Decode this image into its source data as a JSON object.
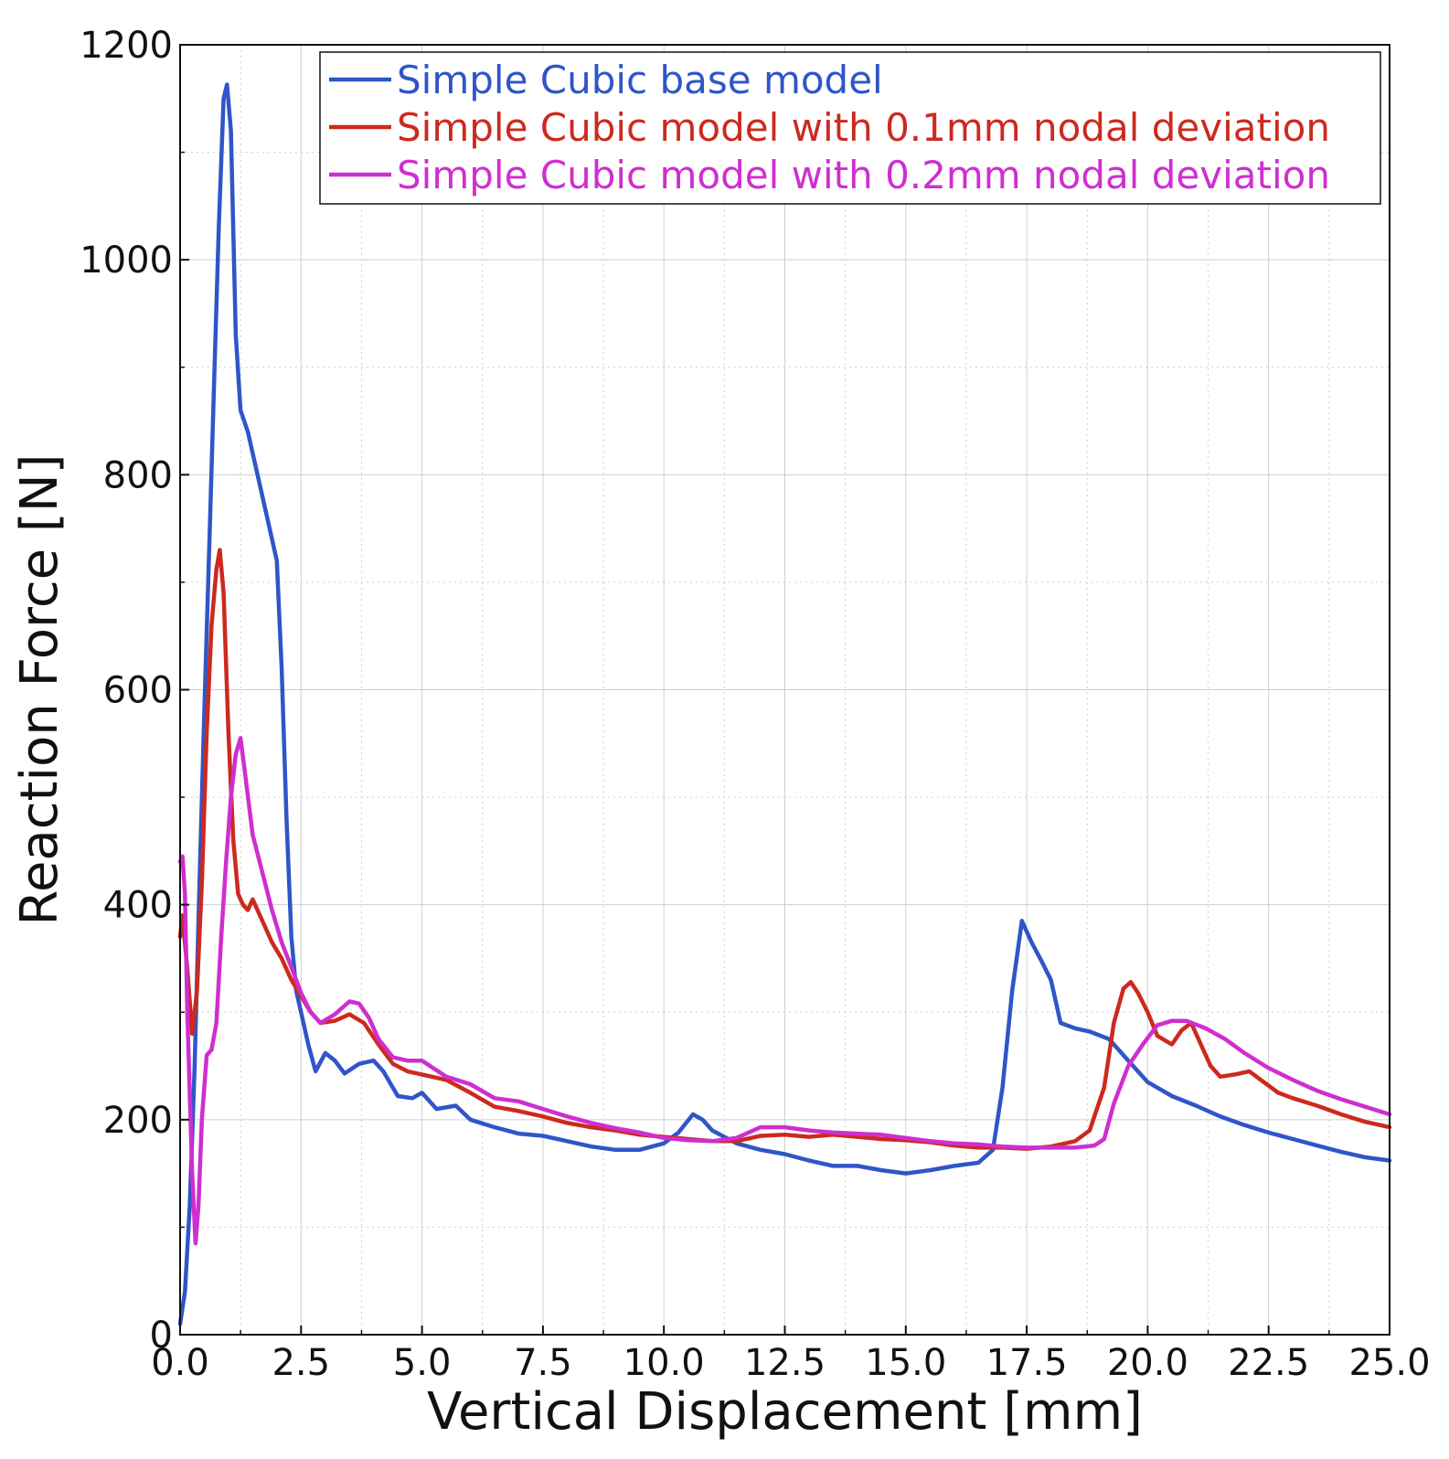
{
  "chart_data": {
    "type": "line",
    "title": "",
    "xlabel": "Vertical Displacement [mm]",
    "ylabel": "Reaction Force [N]",
    "xlim": [
      0,
      25
    ],
    "ylim": [
      0,
      1200
    ],
    "grid": true,
    "legend_position": "top-right",
    "x_ticks": [
      "0.0",
      "2.5",
      "5.0",
      "7.5",
      "10.0",
      "12.5",
      "15.0",
      "17.5",
      "20.0",
      "22.5",
      "25.0"
    ],
    "y_ticks": [
      "0",
      "200",
      "400",
      "600",
      "800",
      "1000",
      "1200"
    ],
    "x_minor_step": 1.25,
    "y_minor_step": 100,
    "series": [
      {
        "name": "Simple Cubic base model",
        "color": "#2f55c8",
        "points": [
          [
            0,
            10
          ],
          [
            0.1,
            40
          ],
          [
            0.2,
            120
          ],
          [
            0.3,
            250
          ],
          [
            0.4,
            420
          ],
          [
            0.5,
            580
          ],
          [
            0.6,
            730
          ],
          [
            0.7,
            880
          ],
          [
            0.8,
            1030
          ],
          [
            0.9,
            1150
          ],
          [
            0.97,
            1163
          ],
          [
            1.05,
            1120
          ],
          [
            1.15,
            930
          ],
          [
            1.25,
            860
          ],
          [
            1.4,
            840
          ],
          [
            1.6,
            800
          ],
          [
            1.8,
            760
          ],
          [
            2.0,
            720
          ],
          [
            2.1,
            620
          ],
          [
            2.2,
            480
          ],
          [
            2.3,
            370
          ],
          [
            2.4,
            320
          ],
          [
            2.5,
            300
          ],
          [
            2.65,
            270
          ],
          [
            2.8,
            245
          ],
          [
            3.0,
            262
          ],
          [
            3.2,
            255
          ],
          [
            3.4,
            243
          ],
          [
            3.7,
            252
          ],
          [
            4.0,
            255
          ],
          [
            4.2,
            245
          ],
          [
            4.5,
            222
          ],
          [
            4.8,
            220
          ],
          [
            5.0,
            225
          ],
          [
            5.3,
            210
          ],
          [
            5.7,
            213
          ],
          [
            6.0,
            200
          ],
          [
            6.5,
            193
          ],
          [
            7.0,
            187
          ],
          [
            7.5,
            185
          ],
          [
            8.0,
            180
          ],
          [
            8.5,
            175
          ],
          [
            9.0,
            172
          ],
          [
            9.5,
            172
          ],
          [
            10.0,
            178
          ],
          [
            10.3,
            188
          ],
          [
            10.6,
            205
          ],
          [
            10.8,
            200
          ],
          [
            11.0,
            190
          ],
          [
            11.5,
            178
          ],
          [
            12.0,
            172
          ],
          [
            12.5,
            168
          ],
          [
            13.0,
            162
          ],
          [
            13.5,
            157
          ],
          [
            14.0,
            157
          ],
          [
            14.5,
            153
          ],
          [
            15.0,
            150
          ],
          [
            15.5,
            153
          ],
          [
            16.0,
            157
          ],
          [
            16.5,
            160
          ],
          [
            16.8,
            172
          ],
          [
            17.0,
            230
          ],
          [
            17.2,
            320
          ],
          [
            17.4,
            385
          ],
          [
            17.6,
            365
          ],
          [
            17.8,
            348
          ],
          [
            18.0,
            330
          ],
          [
            18.2,
            290
          ],
          [
            18.5,
            285
          ],
          [
            18.8,
            282
          ],
          [
            19.2,
            275
          ],
          [
            19.6,
            255
          ],
          [
            20.0,
            235
          ],
          [
            20.5,
            222
          ],
          [
            21.0,
            213
          ],
          [
            21.5,
            203
          ],
          [
            22.0,
            195
          ],
          [
            22.5,
            188
          ],
          [
            23.0,
            182
          ],
          [
            23.5,
            176
          ],
          [
            24.0,
            170
          ],
          [
            24.5,
            165
          ],
          [
            25.0,
            162
          ]
        ]
      },
      {
        "name": "Simple Cubic model with 0.1mm nodal deviation",
        "color": "#cc2a1e",
        "points": [
          [
            0,
            370
          ],
          [
            0.05,
            390
          ],
          [
            0.15,
            340
          ],
          [
            0.25,
            280
          ],
          [
            0.35,
            320
          ],
          [
            0.45,
            420
          ],
          [
            0.55,
            560
          ],
          [
            0.65,
            660
          ],
          [
            0.75,
            712
          ],
          [
            0.82,
            730
          ],
          [
            0.9,
            690
          ],
          [
            1.0,
            560
          ],
          [
            1.1,
            460
          ],
          [
            1.2,
            410
          ],
          [
            1.3,
            400
          ],
          [
            1.4,
            395
          ],
          [
            1.5,
            405
          ],
          [
            1.7,
            385
          ],
          [
            1.9,
            365
          ],
          [
            2.1,
            350
          ],
          [
            2.3,
            330
          ],
          [
            2.5,
            315
          ],
          [
            2.7,
            300
          ],
          [
            2.9,
            290
          ],
          [
            3.2,
            292
          ],
          [
            3.5,
            298
          ],
          [
            3.8,
            290
          ],
          [
            4.1,
            270
          ],
          [
            4.4,
            252
          ],
          [
            4.7,
            245
          ],
          [
            5.0,
            242
          ],
          [
            5.5,
            237
          ],
          [
            6.0,
            225
          ],
          [
            6.5,
            212
          ],
          [
            7.0,
            208
          ],
          [
            7.5,
            203
          ],
          [
            8.0,
            197
          ],
          [
            8.5,
            193
          ],
          [
            9.0,
            190
          ],
          [
            9.5,
            186
          ],
          [
            10.0,
            184
          ],
          [
            10.5,
            182
          ],
          [
            11.0,
            180
          ],
          [
            11.5,
            180
          ],
          [
            12.0,
            185
          ],
          [
            12.5,
            186
          ],
          [
            13.0,
            184
          ],
          [
            13.5,
            186
          ],
          [
            14.0,
            184
          ],
          [
            14.5,
            182
          ],
          [
            15.0,
            181
          ],
          [
            15.5,
            179
          ],
          [
            16.0,
            176
          ],
          [
            16.5,
            174
          ],
          [
            17.0,
            174
          ],
          [
            17.5,
            173
          ],
          [
            18.0,
            175
          ],
          [
            18.5,
            180
          ],
          [
            18.8,
            190
          ],
          [
            19.1,
            230
          ],
          [
            19.3,
            290
          ],
          [
            19.5,
            322
          ],
          [
            19.65,
            328
          ],
          [
            19.8,
            318
          ],
          [
            20.0,
            300
          ],
          [
            20.2,
            278
          ],
          [
            20.5,
            270
          ],
          [
            20.7,
            283
          ],
          [
            20.9,
            290
          ],
          [
            21.1,
            270
          ],
          [
            21.3,
            250
          ],
          [
            21.5,
            240
          ],
          [
            21.8,
            242
          ],
          [
            22.1,
            245
          ],
          [
            22.4,
            235
          ],
          [
            22.7,
            225
          ],
          [
            23.0,
            220
          ],
          [
            23.5,
            213
          ],
          [
            24.0,
            205
          ],
          [
            24.5,
            198
          ],
          [
            25.0,
            193
          ]
        ]
      },
      {
        "name": "Simple Cubic model with 0.2mm nodal deviation",
        "color": "#cf2ed0",
        "points": [
          [
            0,
            440
          ],
          [
            0.05,
            445
          ],
          [
            0.1,
            410
          ],
          [
            0.15,
            300
          ],
          [
            0.25,
            150
          ],
          [
            0.32,
            85
          ],
          [
            0.38,
            120
          ],
          [
            0.45,
            200
          ],
          [
            0.55,
            260
          ],
          [
            0.65,
            265
          ],
          [
            0.75,
            290
          ],
          [
            0.85,
            370
          ],
          [
            0.95,
            440
          ],
          [
            1.05,
            500
          ],
          [
            1.15,
            540
          ],
          [
            1.25,
            555
          ],
          [
            1.35,
            520
          ],
          [
            1.5,
            465
          ],
          [
            1.7,
            430
          ],
          [
            1.9,
            395
          ],
          [
            2.1,
            365
          ],
          [
            2.3,
            342
          ],
          [
            2.5,
            318
          ],
          [
            2.7,
            300
          ],
          [
            2.9,
            290
          ],
          [
            3.2,
            298
          ],
          [
            3.5,
            310
          ],
          [
            3.7,
            308
          ],
          [
            3.9,
            295
          ],
          [
            4.1,
            275
          ],
          [
            4.4,
            258
          ],
          [
            4.7,
            255
          ],
          [
            5.0,
            255
          ],
          [
            5.5,
            240
          ],
          [
            6.0,
            233
          ],
          [
            6.5,
            220
          ],
          [
            7.0,
            217
          ],
          [
            7.5,
            210
          ],
          [
            8.0,
            203
          ],
          [
            8.5,
            197
          ],
          [
            9.0,
            192
          ],
          [
            9.5,
            188
          ],
          [
            10.0,
            183
          ],
          [
            10.5,
            181
          ],
          [
            11.0,
            180
          ],
          [
            11.5,
            183
          ],
          [
            12.0,
            193
          ],
          [
            12.5,
            193
          ],
          [
            13.0,
            190
          ],
          [
            13.5,
            188
          ],
          [
            14.0,
            187
          ],
          [
            14.5,
            186
          ],
          [
            15.0,
            183
          ],
          [
            15.5,
            180
          ],
          [
            16.0,
            178
          ],
          [
            16.5,
            177
          ],
          [
            17.0,
            175
          ],
          [
            17.5,
            174
          ],
          [
            18.0,
            174
          ],
          [
            18.5,
            174
          ],
          [
            18.9,
            176
          ],
          [
            19.1,
            182
          ],
          [
            19.3,
            215
          ],
          [
            19.6,
            250
          ],
          [
            19.9,
            270
          ],
          [
            20.2,
            288
          ],
          [
            20.5,
            292
          ],
          [
            20.8,
            292
          ],
          [
            21.2,
            285
          ],
          [
            21.6,
            275
          ],
          [
            22.0,
            262
          ],
          [
            22.5,
            248
          ],
          [
            23.0,
            237
          ],
          [
            23.5,
            227
          ],
          [
            24.0,
            219
          ],
          [
            24.5,
            212
          ],
          [
            25.0,
            205
          ]
        ]
      }
    ]
  }
}
